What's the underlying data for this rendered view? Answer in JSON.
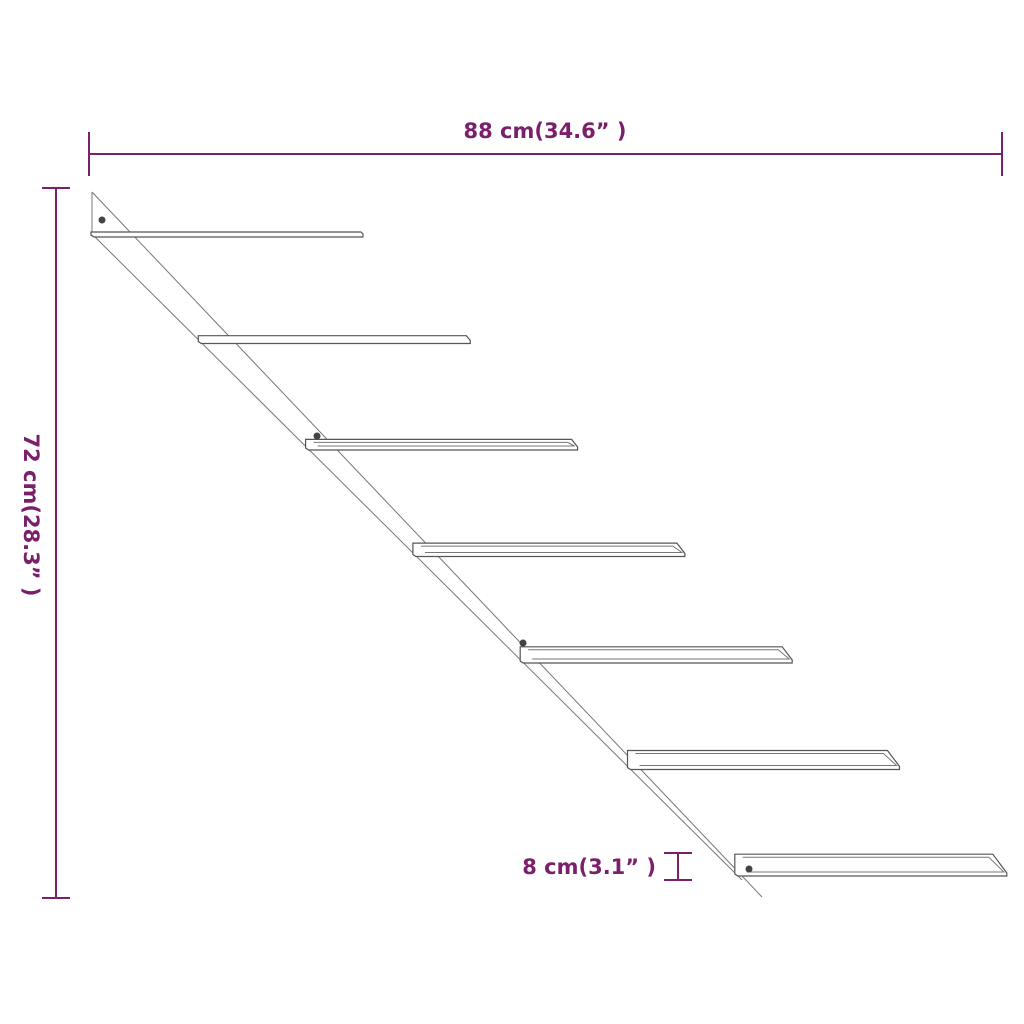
{
  "colors": {
    "dimension": "#7a1f6b",
    "drawing": "#555555"
  },
  "dimensions": {
    "width": "88 cm(34.6” )",
    "height": "72 cm(28.3” )",
    "shelf_spacing": "8 cm(3.1” )"
  },
  "shelf_count": 7
}
